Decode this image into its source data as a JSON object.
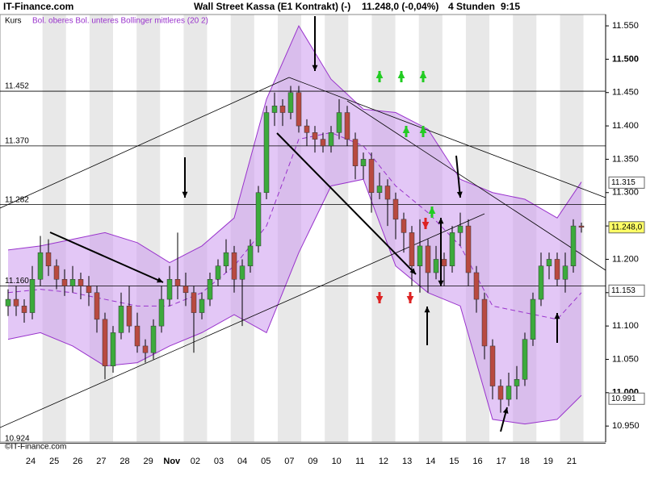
{
  "chart_data": {
    "type": "candlestick",
    "site": "IT-Finance.com",
    "title": "Wall Street Kassa (E1 Kontrakt) (-)",
    "quote": "11.248,0 (-0,04%)",
    "interval": "4 Stunden",
    "time": "9:15",
    "legend": [
      "Kurs",
      "Bol. oberes Bol. unteres Bollinger mittleres (20 2)"
    ],
    "copyright": "©IT-Finance.com",
    "categories": [
      "24",
      "25",
      "26",
      "27",
      "28",
      "29",
      "Nov",
      "02",
      "03",
      "04",
      "05",
      "07",
      "09",
      "10",
      "11",
      "12",
      "13",
      "14",
      "15",
      "16",
      "17",
      "18",
      "19",
      "21"
    ],
    "up_color": "#3caa3c",
    "down_color": "#b84a40",
    "open": [
      11.13,
      11.14,
      11.13,
      11.12,
      11.17,
      11.21,
      11.19,
      11.17,
      11.16,
      11.17,
      11.16,
      11.15,
      11.11,
      11.04,
      11.09,
      11.13,
      11.1,
      11.07,
      11.06,
      11.1,
      11.14,
      11.17,
      11.16,
      11.15,
      11.12,
      11.14,
      11.17,
      11.19,
      11.21,
      11.17,
      11.19,
      11.22,
      11.3,
      11.42,
      11.43,
      11.42,
      11.45,
      11.4,
      11.39,
      11.38,
      11.37,
      11.39,
      11.42,
      11.38,
      11.34,
      11.35,
      11.3,
      11.31,
      11.29,
      11.26,
      11.24,
      11.19,
      11.22,
      11.18,
      11.2,
      11.19,
      11.24,
      11.25,
      11.18,
      11.14,
      11.07,
      11.01,
      10.99,
      11.01,
      11.02,
      11.08,
      11.14,
      11.19,
      11.2,
      11.17,
      11.19,
      11.25
    ],
    "high": [
      11.155,
      11.16,
      11.14,
      11.19,
      11.235,
      11.23,
      11.2,
      11.185,
      11.19,
      11.18,
      11.175,
      11.16,
      11.12,
      11.1,
      11.15,
      11.16,
      11.12,
      11.08,
      11.11,
      11.16,
      11.19,
      11.24,
      11.18,
      11.16,
      11.15,
      11.18,
      11.2,
      11.23,
      11.22,
      11.2,
      11.23,
      11.31,
      11.43,
      11.45,
      11.44,
      11.46,
      11.46,
      11.41,
      11.4,
      11.39,
      11.4,
      11.44,
      11.43,
      11.39,
      11.36,
      11.36,
      11.33,
      11.32,
      11.3,
      11.27,
      11.25,
      11.26,
      11.23,
      11.22,
      11.21,
      11.25,
      11.27,
      11.26,
      11.19,
      11.15,
      11.08,
      11.02,
      11.03,
      11.04,
      11.09,
      11.15,
      11.21,
      11.21,
      11.21,
      11.21,
      11.26,
      11.255
    ],
    "low": [
      11.115,
      11.115,
      11.105,
      11.11,
      11.16,
      11.175,
      11.155,
      11.145,
      11.15,
      11.14,
      11.13,
      11.09,
      11.02,
      11.03,
      11.08,
      11.09,
      11.06,
      11.045,
      11.05,
      11.09,
      11.13,
      11.14,
      11.13,
      11.06,
      11.11,
      11.13,
      11.16,
      11.18,
      11.15,
      11.1,
      11.18,
      11.21,
      11.29,
      11.4,
      11.4,
      11.41,
      11.39,
      11.37,
      11.36,
      11.36,
      11.36,
      11.38,
      11.37,
      11.32,
      11.32,
      11.27,
      11.29,
      11.25,
      11.23,
      11.21,
      11.16,
      11.15,
      11.15,
      11.17,
      11.16,
      11.18,
      11.22,
      11.16,
      11.12,
      11.05,
      10.99,
      10.97,
      10.98,
      10.99,
      11.01,
      11.07,
      11.13,
      11.17,
      11.16,
      11.15,
      11.18,
      11.24
    ],
    "close": [
      11.14,
      11.13,
      11.12,
      11.17,
      11.21,
      11.19,
      11.17,
      11.16,
      11.17,
      11.16,
      11.15,
      11.11,
      11.04,
      11.09,
      11.13,
      11.1,
      11.07,
      11.06,
      11.1,
      11.14,
      11.17,
      11.16,
      11.15,
      11.12,
      11.14,
      11.17,
      11.19,
      11.21,
      11.17,
      11.19,
      11.22,
      11.3,
      11.42,
      11.43,
      11.42,
      11.45,
      11.4,
      11.39,
      11.38,
      11.37,
      11.39,
      11.42,
      11.38,
      11.34,
      11.35,
      11.3,
      11.31,
      11.29,
      11.26,
      11.24,
      11.19,
      11.22,
      11.18,
      11.2,
      11.19,
      11.24,
      11.25,
      11.18,
      11.14,
      11.07,
      11.01,
      10.99,
      11.01,
      11.02,
      11.08,
      11.14,
      11.19,
      11.2,
      11.17,
      11.19,
      11.25,
      11.248
    ],
    "bollinger": {
      "color": "#9933cc",
      "x": [
        0,
        4,
        8,
        12,
        16,
        20,
        24,
        28,
        32,
        36,
        40,
        44,
        48,
        52,
        56,
        60,
        64,
        68,
        71
      ],
      "upper": [
        11.214,
        11.22,
        11.23,
        11.24,
        11.225,
        11.195,
        11.22,
        11.262,
        11.44,
        11.55,
        11.47,
        11.425,
        11.42,
        11.395,
        11.32,
        11.3,
        11.29,
        11.262,
        11.316
      ],
      "middle": [
        11.15,
        11.155,
        11.15,
        11.14,
        11.13,
        11.13,
        11.15,
        11.19,
        11.25,
        11.38,
        11.39,
        11.37,
        11.31,
        11.27,
        11.22,
        11.13,
        11.12,
        11.11,
        11.15
      ],
      "lower": [
        11.08,
        11.09,
        11.07,
        11.04,
        11.045,
        11.07,
        11.09,
        11.117,
        11.09,
        11.21,
        11.31,
        11.32,
        11.19,
        11.15,
        11.13,
        10.96,
        10.953,
        10.96,
        10.996
      ]
    },
    "levels": [
      {
        "value": 11.452,
        "label": "11.452"
      },
      {
        "value": 11.37,
        "label": "11.370"
      },
      {
        "value": 11.282,
        "label": "11.282"
      },
      {
        "value": 11.16,
        "label": "11.160"
      },
      {
        "value": 10.924,
        "label": "10.924"
      }
    ],
    "price_markers": [
      {
        "value": 11.315,
        "label": "11.315",
        "color": "#ffffff"
      },
      {
        "value": 11.248,
        "label": "11.248,0",
        "color": "#ffff66"
      },
      {
        "value": 11.153,
        "label": "11.153",
        "color": "#ffffff"
      },
      {
        "value": 10.991,
        "label": "10.991",
        "color": "#ffffff"
      }
    ],
    "ylim": [
      10.926,
      11.567
    ],
    "yticks": [
      {
        "value": 10.95,
        "label": "10.950"
      },
      {
        "value": 11.0,
        "label": "11.000"
      },
      {
        "value": 11.05,
        "label": "11.050"
      },
      {
        "value": 11.1,
        "label": "11.100"
      },
      {
        "value": 11.15,
        "label": "11.150"
      },
      {
        "value": 11.2,
        "label": "11.200"
      },
      {
        "value": 11.25,
        "label": "11.250"
      },
      {
        "value": 11.3,
        "label": "11.300"
      },
      {
        "value": 11.35,
        "label": "11.350"
      },
      {
        "value": 11.4,
        "label": "11.400"
      },
      {
        "value": 11.45,
        "label": "11.450"
      },
      {
        "value": 11.5,
        "label": "11.500"
      },
      {
        "value": 11.55,
        "label": "11.550"
      }
    ]
  }
}
